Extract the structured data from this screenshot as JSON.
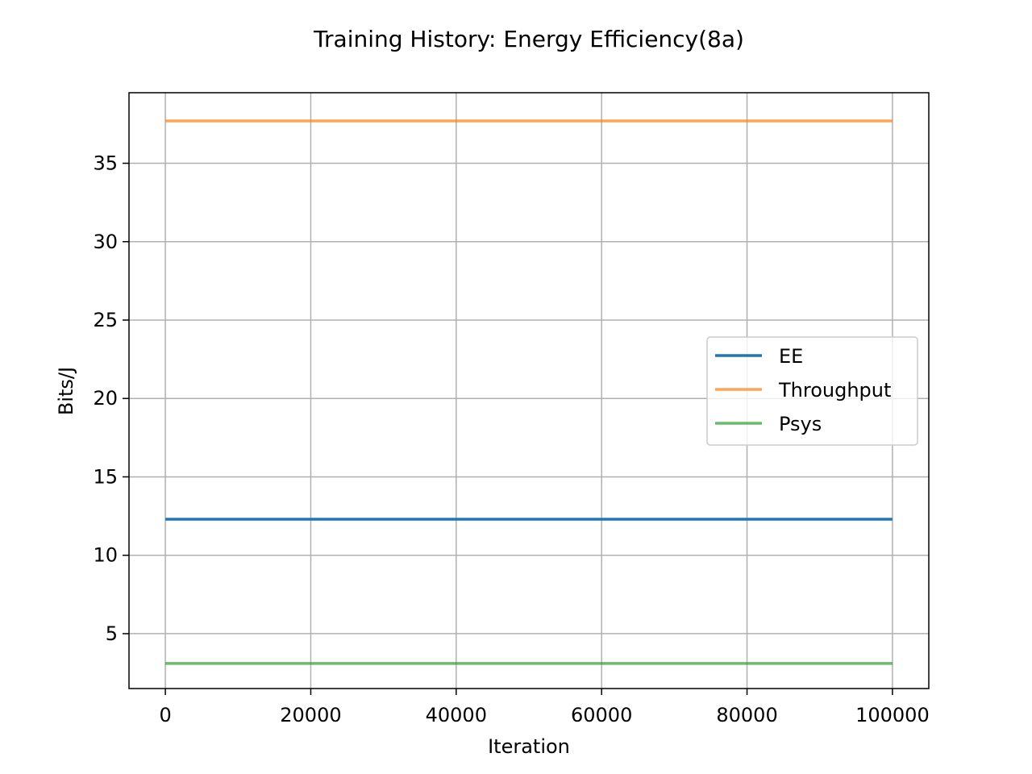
{
  "chart_data": {
    "type": "line",
    "title": "Training History: Energy Efficiency(8a)",
    "xlabel": "Iteration",
    "ylabel": "Bits/J",
    "xlim": [
      -5000,
      105000
    ],
    "ylim": [
      1.5,
      39.5
    ],
    "xticks": [
      0,
      20000,
      40000,
      60000,
      80000,
      100000
    ],
    "yticks": [
      5,
      10,
      15,
      20,
      25,
      30,
      35
    ],
    "grid": true,
    "legend_position": "center-right",
    "series": [
      {
        "name": "EE",
        "color": "#1f77b4",
        "x": [
          0,
          50000,
          100000
        ],
        "y": [
          12.3,
          12.3,
          12.3
        ]
      },
      {
        "name": "Throughput",
        "color": "#ff7f0e",
        "x": [
          0,
          50000,
          100000
        ],
        "y": [
          37.7,
          37.7,
          37.7
        ]
      },
      {
        "name": "Psys",
        "color": "#2ca02c",
        "x": [
          0,
          50000,
          100000
        ],
        "y": [
          3.1,
          3.1,
          3.1
        ]
      }
    ]
  }
}
